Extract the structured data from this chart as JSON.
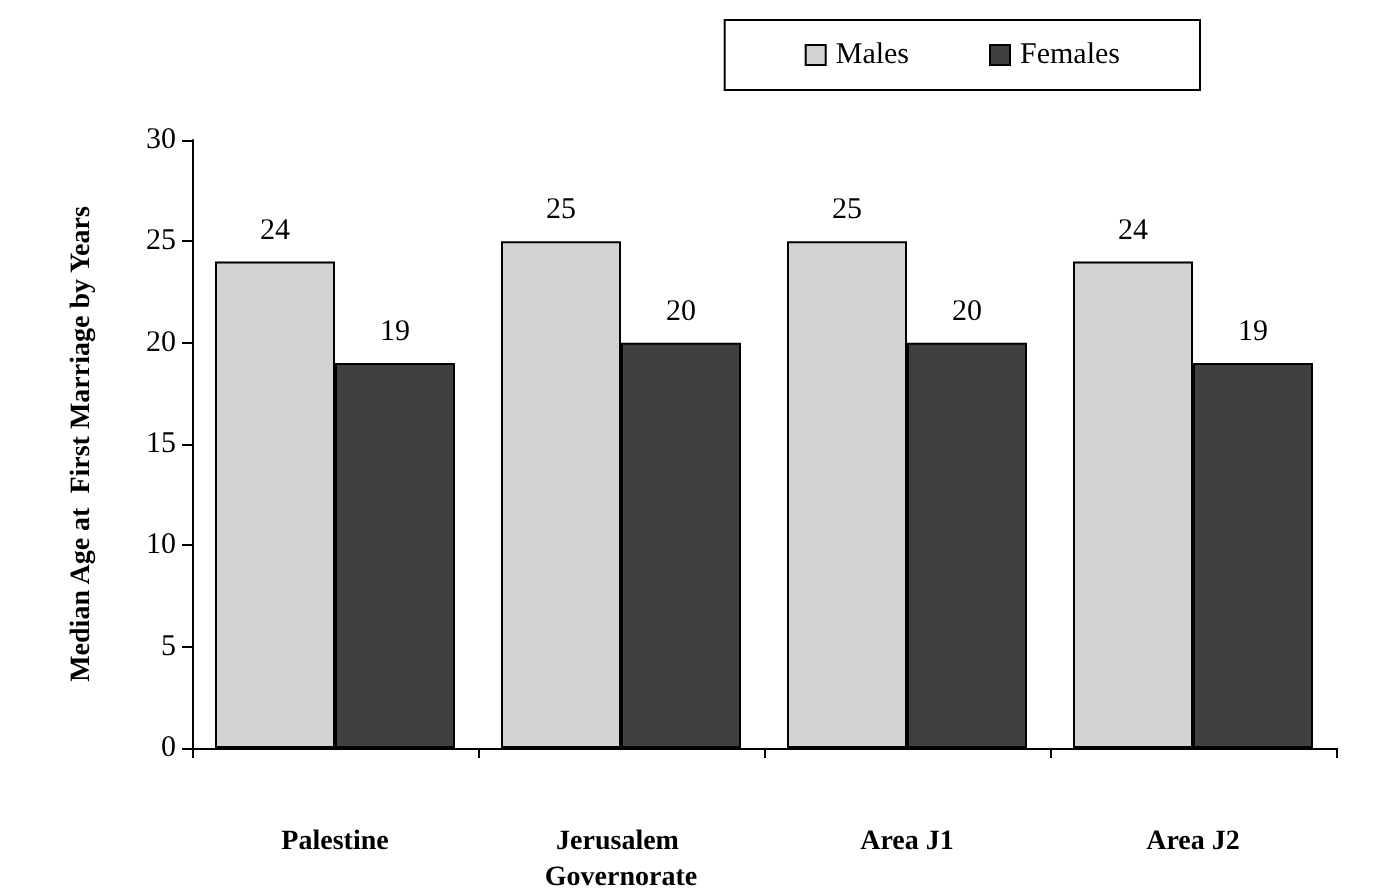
{
  "chart_data": {
    "type": "bar",
    "ylabel": "Median Age at  First Marriage by Years",
    "categories": [
      "Palestine",
      "Jerusalem Governorate",
      "Area J1",
      "Area J2"
    ],
    "series": [
      {
        "name": "Males",
        "color": "#d3d3d3",
        "values": [
          24,
          25,
          25,
          24
        ]
      },
      {
        "name": "Females",
        "color": "#404040",
        "values": [
          19,
          20,
          20,
          19
        ]
      }
    ],
    "ylim": [
      0,
      30
    ],
    "yticks": [
      0,
      5,
      10,
      15,
      20,
      25,
      30
    ],
    "grid": false,
    "legend": "top right",
    "data_labels": true
  }
}
